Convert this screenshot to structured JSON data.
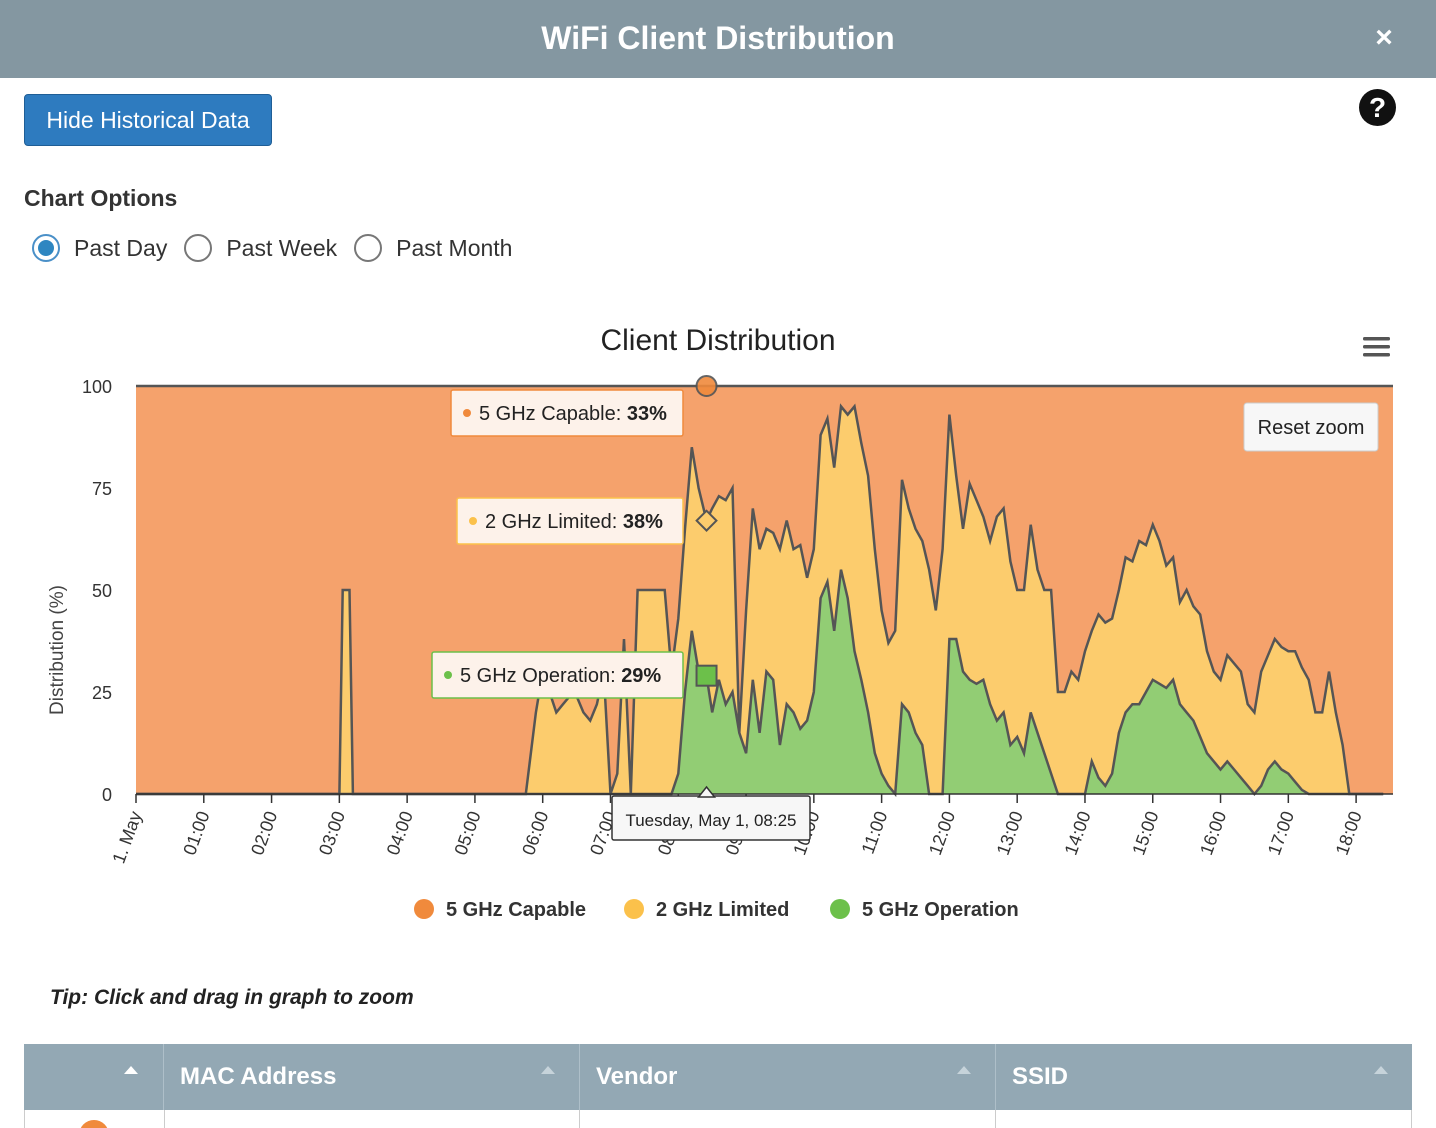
{
  "header": {
    "title": "WiFi Client Distribution",
    "close_label": "×"
  },
  "toolbar": {
    "hide_label": "Hide Historical Data",
    "help_label": "?"
  },
  "options": {
    "title": "Chart Options",
    "radios": [
      {
        "label": "Past Day",
        "checked": true
      },
      {
        "label": "Past Week",
        "checked": false
      },
      {
        "label": "Past Month",
        "checked": false
      }
    ]
  },
  "colors": {
    "capable": "#f5a26c",
    "limited": "#fccc6d",
    "operation": "#92cd74",
    "capable_dot": "#f08a3c",
    "limited_dot": "#fbc14b",
    "operation_dot": "#6cc04a",
    "line": "#555555"
  },
  "chart_data": {
    "type": "area",
    "stacked": true,
    "title": "Client Distribution",
    "ylabel": "Distribution (%)",
    "ylim": [
      0,
      100
    ],
    "yticks": [
      "0",
      "25",
      "50",
      "75",
      "100"
    ],
    "xticks": [
      "1. May",
      "01:00",
      "02:00",
      "03:00",
      "04:00",
      "05:00",
      "06:00",
      "07:00",
      "08:00",
      "09:00",
      "10:00",
      "11:00",
      "12:00",
      "13:00",
      "14:00",
      "15:00",
      "16:00",
      "17:00",
      "18:00"
    ],
    "x_hours": [
      0,
      0.5,
      1,
      1.5,
      2,
      2.5,
      3,
      3.05,
      3.1,
      3.15,
      3.2,
      3.5,
      4,
      4.5,
      5,
      5.5,
      5.75,
      5.9,
      6.0,
      6.1,
      6.2,
      6.3,
      6.4,
      6.5,
      6.6,
      6.7,
      6.8,
      6.9,
      7.0,
      7.1,
      7.2,
      7.3,
      7.4,
      7.5,
      7.6,
      7.7,
      7.8,
      7.9,
      8.0,
      8.1,
      8.2,
      8.3,
      8.417,
      8.5,
      8.6,
      8.7,
      8.8,
      8.9,
      9.0,
      9.1,
      9.2,
      9.3,
      9.4,
      9.5,
      9.6,
      9.7,
      9.8,
      9.9,
      10.0,
      10.1,
      10.2,
      10.3,
      10.4,
      10.5,
      10.6,
      10.7,
      10.8,
      10.9,
      11.0,
      11.1,
      11.2,
      11.3,
      11.4,
      11.5,
      11.6,
      11.7,
      11.8,
      11.9,
      12.0,
      12.1,
      12.2,
      12.3,
      12.4,
      12.5,
      12.6,
      12.7,
      12.8,
      12.9,
      13.0,
      13.1,
      13.2,
      13.3,
      13.4,
      13.5,
      13.6,
      13.7,
      13.8,
      13.9,
      14.0,
      14.1,
      14.2,
      14.3,
      14.4,
      14.5,
      14.6,
      14.7,
      14.8,
      14.9,
      15.0,
      15.1,
      15.2,
      15.3,
      15.4,
      15.5,
      15.6,
      15.7,
      15.8,
      15.9,
      16.0,
      16.1,
      16.2,
      16.3,
      16.4,
      16.5,
      16.6,
      16.7,
      16.8,
      16.9,
      17.0,
      17.1,
      17.2,
      17.3,
      17.4,
      17.5,
      17.6,
      17.7,
      17.8,
      17.9,
      18.0,
      18.1,
      18.2,
      18.3,
      18.4
    ],
    "series": [
      {
        "name": "5 GHz Operation",
        "values": [
          0,
          0,
          0,
          0,
          0,
          0,
          0,
          0,
          0,
          0,
          0,
          0,
          0,
          0,
          0,
          0,
          0,
          0,
          0,
          0,
          0,
          0,
          0,
          0,
          0,
          0,
          0,
          0,
          0,
          0,
          0,
          0,
          0,
          0,
          0,
          0,
          0,
          0,
          5,
          25,
          40,
          30,
          29,
          20,
          28,
          22,
          25,
          15,
          10,
          28,
          15,
          30,
          28,
          12,
          22,
          20,
          16,
          18,
          25,
          48,
          52,
          40,
          55,
          48,
          35,
          28,
          20,
          10,
          5,
          2,
          0,
          22,
          20,
          15,
          12,
          0,
          0,
          0,
          38,
          38,
          30,
          28,
          27,
          28,
          22,
          18,
          20,
          12,
          14,
          10,
          20,
          15,
          10,
          5,
          0,
          0,
          0,
          0,
          0,
          8,
          4,
          2,
          5,
          15,
          20,
          22,
          22,
          25,
          28,
          27,
          26,
          28,
          22,
          20,
          18,
          14,
          10,
          8,
          6,
          8,
          6,
          4,
          2,
          0,
          2,
          6,
          8,
          6,
          5,
          3,
          1,
          0,
          0,
          0,
          0,
          0,
          0,
          0,
          0,
          0,
          0,
          0,
          0
        ]
      },
      {
        "name": "2 GHz Limited",
        "values": [
          0,
          0,
          0,
          0,
          0,
          0,
          0,
          50,
          50,
          50,
          0,
          0,
          0,
          0,
          0,
          0,
          0,
          20,
          30,
          25,
          20,
          22,
          24,
          24,
          20,
          18,
          22,
          30,
          0,
          5,
          38,
          0,
          50,
          50,
          50,
          50,
          50,
          30,
          38,
          40,
          45,
          45,
          38,
          50,
          45,
          50,
          50,
          0,
          35,
          42,
          45,
          35,
          36,
          48,
          45,
          40,
          45,
          35,
          35,
          40,
          40,
          40,
          40,
          45,
          60,
          58,
          58,
          50,
          40,
          35,
          40,
          55,
          50,
          50,
          50,
          55,
          45,
          60,
          55,
          40,
          35,
          48,
          45,
          40,
          40,
          50,
          50,
          45,
          36,
          40,
          46,
          40,
          40,
          45,
          25,
          25,
          30,
          28,
          35,
          32,
          40,
          40,
          38,
          35,
          38,
          35,
          40,
          36,
          38,
          35,
          30,
          30,
          25,
          30,
          28,
          30,
          25,
          22,
          22,
          26,
          26,
          26,
          20,
          20,
          28,
          28,
          30,
          30,
          30,
          32,
          30,
          28,
          20,
          20,
          30,
          20,
          12,
          0,
          0,
          0,
          0,
          0,
          0
        ]
      },
      {
        "name": "5 GHz Capable",
        "values": [
          100,
          100,
          100,
          100,
          100,
          100,
          100,
          50,
          50,
          50,
          100,
          100,
          100,
          100,
          100,
          100,
          100,
          80,
          70,
          75,
          80,
          78,
          76,
          76,
          80,
          82,
          78,
          70,
          100,
          95,
          62,
          100,
          50,
          50,
          50,
          50,
          50,
          70,
          57,
          35,
          15,
          25,
          33,
          30,
          27,
          28,
          25,
          85,
          55,
          30,
          40,
          35,
          36,
          40,
          33,
          40,
          39,
          47,
          40,
          12,
          8,
          20,
          5,
          7,
          5,
          14,
          22,
          40,
          55,
          63,
          60,
          23,
          30,
          35,
          38,
          45,
          55,
          40,
          7,
          22,
          35,
          24,
          28,
          32,
          38,
          32,
          30,
          43,
          50,
          50,
          34,
          45,
          50,
          50,
          75,
          75,
          70,
          72,
          65,
          68,
          56,
          58,
          60,
          60,
          42,
          43,
          35,
          42,
          34,
          40,
          42,
          42,
          53,
          50,
          54,
          56,
          65,
          70,
          72,
          66,
          68,
          70,
          78,
          80,
          70,
          66,
          62,
          64,
          65,
          65,
          69,
          72,
          80,
          80,
          70,
          80,
          88,
          100,
          100,
          100,
          100,
          100,
          100
        ]
      }
    ],
    "legend": [
      "5 GHz Capable",
      "2 GHz Limited",
      "5 GHz Operation"
    ],
    "legend_position": "bottom",
    "tooltip": {
      "header": "Tuesday, May 1, 08:25",
      "items": [
        {
          "series": "5 GHz Capable",
          "value": "33%"
        },
        {
          "series": "2 GHz Limited",
          "value": "38%"
        },
        {
          "series": "5 GHz Operation",
          "value": "29%"
        }
      ],
      "x_hour": 8.417
    },
    "reset_zoom_label": "Reset zoom",
    "menu_icon": "hamburger-menu-icon"
  },
  "tip": "Tip: Click and drag in graph to zoom",
  "table": {
    "columns": [
      "",
      "MAC Address",
      "Vendor",
      "SSID"
    ]
  }
}
